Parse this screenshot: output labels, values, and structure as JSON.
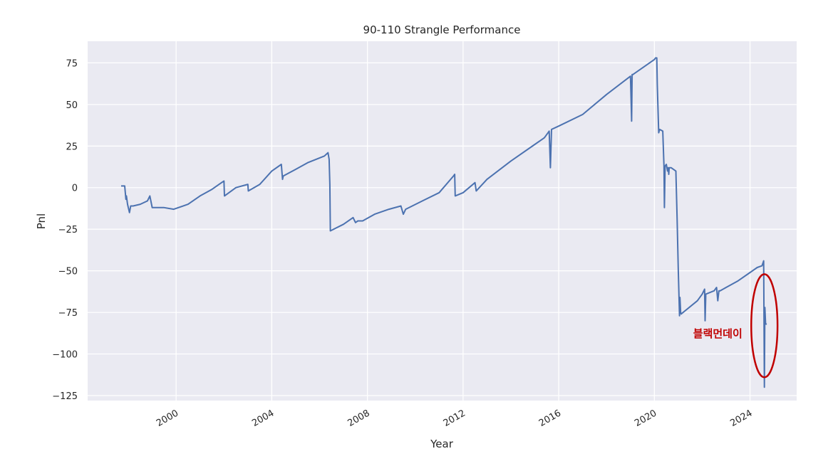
{
  "chart_data": {
    "type": "line",
    "title": "90-110 Strangle Performance",
    "xlabel": "Year",
    "ylabel": "Pnl",
    "xlim": [
      1996.3,
      2025.95
    ],
    "ylim": [
      -128,
      88
    ],
    "xticks": [
      2000,
      2004,
      2008,
      2012,
      2016,
      2020,
      2024
    ],
    "xtick_labels": [
      "2000",
      "2004",
      "2008",
      "2012",
      "2016",
      "2020",
      "2024"
    ],
    "yticks": [
      75,
      50,
      25,
      0,
      -25,
      -50,
      -75,
      -100,
      -125
    ],
    "ytick_labels": [
      "75",
      "50",
      "25",
      "0",
      "−25",
      "−50",
      "−75",
      "−100",
      "−125"
    ],
    "grid": true,
    "line_color": "#4c72b0",
    "background_color": "#eaeaf2",
    "series": [
      {
        "x": [
          1997.7,
          1997.85,
          1997.9,
          1997.92,
          1997.97,
          1998.05,
          1998.1,
          1998.2,
          1998.5,
          1998.8,
          1998.9,
          1999.0,
          1999.5,
          1999.9,
          2000.5,
          2001.0,
          2001.5,
          2001.9,
          2002.0,
          2002.02,
          2002.5,
          2003.0,
          2003.02,
          2003.5,
          2004.0,
          2004.4,
          2004.45,
          2004.48,
          2005.0,
          2005.5,
          2006.2,
          2006.35,
          2006.4,
          2006.43,
          2006.45,
          2007.0,
          2007.4,
          2007.5,
          2007.6,
          2007.8,
          2008.3,
          2008.9,
          2009.4,
          2009.5,
          2009.6,
          2010.3,
          2011.0,
          2011.6,
          2011.65,
          2011.67,
          2012.0,
          2012.5,
          2012.55,
          2013.0,
          2014.0,
          2015.0,
          2015.4,
          2015.6,
          2015.65,
          2015.7,
          2016.0,
          2017.0,
          2018.0,
          2019.0,
          2019.05,
          2019.07,
          2019.1,
          2019.5,
          2020.0,
          2020.05,
          2020.1,
          2020.12,
          2020.18,
          2020.22,
          2020.35,
          2020.4,
          2020.42,
          2020.45,
          2020.5,
          2020.55,
          2020.58,
          2020.6,
          2020.62,
          2020.7,
          2020.9,
          2020.95,
          2021.0,
          2021.05,
          2021.07,
          2021.1,
          2021.12,
          2021.2,
          2021.8,
          2022.0,
          2022.1,
          2022.12,
          2022.15,
          2022.5,
          2022.6,
          2022.65,
          2022.7,
          2022.75,
          2023.0,
          2023.5,
          2024.0,
          2024.3,
          2024.5,
          2024.55,
          2024.57,
          2024.6,
          2024.62,
          2024.65,
          2024.7
        ],
        "y": [
          1,
          1,
          -7,
          -5,
          -10,
          -15,
          -11,
          -11,
          -10,
          -8,
          -5,
          -12,
          -12,
          -13,
          -10,
          -5,
          -1,
          3,
          4,
          -5,
          0,
          2,
          -2,
          2,
          10,
          14,
          5,
          7,
          11,
          15,
          19,
          21,
          17,
          2,
          -26,
          -22,
          -18,
          -21,
          -20,
          -20,
          -16,
          -13,
          -11,
          -16,
          -13,
          -8,
          -3,
          7,
          8,
          -5,
          -3,
          3,
          -2,
          5,
          16,
          26,
          30,
          34,
          12,
          35,
          37,
          44,
          56,
          67,
          40,
          68,
          68,
          72,
          77,
          78,
          78,
          62,
          33,
          35,
          34,
          13,
          -12,
          13,
          14,
          10,
          12,
          8,
          12,
          12,
          10,
          -18,
          -50,
          -77,
          -66,
          -75,
          -76,
          -75,
          -68,
          -64,
          -61,
          -80,
          -64,
          -62,
          -60,
          -68,
          -62,
          -62,
          -60,
          -56,
          -51,
          -48,
          -47,
          -45,
          -44,
          -120,
          -72,
          -82,
          -82
        ]
      }
    ],
    "annotations": [
      {
        "text": "블랙먼데이",
        "x": 2022.65,
        "y": -90
      },
      {
        "shape": "ellipse",
        "color": "#c00000",
        "cx": 2024.6,
        "cy": -83,
        "rx_years": 0.55,
        "ry_units": 31
      }
    ]
  }
}
